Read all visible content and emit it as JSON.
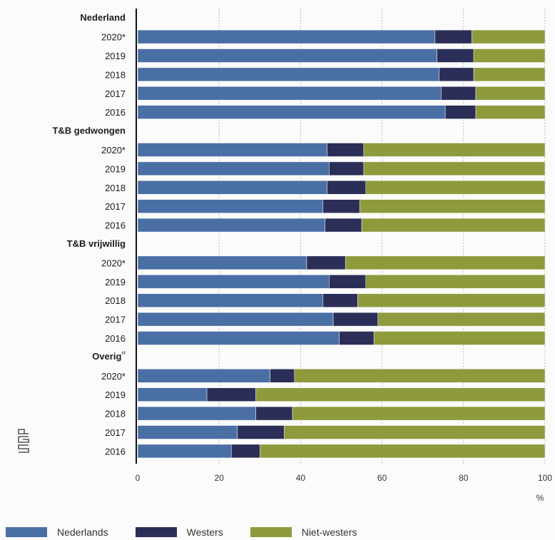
{
  "chart_data": {
    "type": "bar",
    "orientation": "horizontal",
    "stacked": true,
    "unit": "%",
    "xlim": [
      0,
      100
    ],
    "x_ticks": [
      "0",
      "20",
      "40",
      "60",
      "80",
      "100"
    ],
    "grid": true,
    "legend_position": "bottom",
    "series_names": [
      "Nederlands",
      "Westers",
      "Niet-westers"
    ],
    "colors": [
      "#4a6fa5",
      "#2b2f57",
      "#8e9a3c"
    ],
    "groups": [
      {
        "label": "Nederland",
        "rows": [
          {
            "year": "2020*",
            "values": [
              73,
              9,
              18
            ]
          },
          {
            "year": "2019",
            "values": [
              73.5,
              9,
              17.5
            ]
          },
          {
            "year": "2018",
            "values": [
              74,
              8.5,
              17.5
            ]
          },
          {
            "year": "2017",
            "values": [
              74.5,
              8.5,
              17
            ]
          },
          {
            "year": "2016",
            "values": [
              75.5,
              7.5,
              17
            ]
          }
        ]
      },
      {
        "label": "T&B gedwongen",
        "rows": [
          {
            "year": "2020*",
            "values": [
              46.5,
              9,
              44.5
            ]
          },
          {
            "year": "2019",
            "values": [
              47,
              8.5,
              44.5
            ]
          },
          {
            "year": "2018",
            "values": [
              46.5,
              9.5,
              44
            ]
          },
          {
            "year": "2017",
            "values": [
              45.5,
              9,
              45.5
            ]
          },
          {
            "year": "2016",
            "values": [
              46,
              9,
              45
            ]
          }
        ]
      },
      {
        "label": "T&B vrijwillig",
        "rows": [
          {
            "year": "2020*",
            "values": [
              41.5,
              9.5,
              49
            ]
          },
          {
            "year": "2019",
            "values": [
              47,
              9,
              44
            ]
          },
          {
            "year": "2018",
            "values": [
              45.5,
              8.5,
              46
            ]
          },
          {
            "year": "2017",
            "values": [
              48,
              11,
              41
            ]
          },
          {
            "year": "2016",
            "values": [
              49.5,
              8.5,
              42
            ]
          }
        ]
      },
      {
        "label": "Overig",
        "label_superscript": "¹⁾",
        "rows": [
          {
            "year": "2020*",
            "values": [
              32.5,
              6,
              61.5
            ]
          },
          {
            "year": "2019",
            "values": [
              17,
              12,
              71
            ]
          },
          {
            "year": "2018",
            "values": [
              29,
              9,
              62
            ]
          },
          {
            "year": "2017",
            "values": [
              24.5,
              11.5,
              64
            ]
          },
          {
            "year": "2016",
            "values": [
              23,
              7,
              70
            ]
          }
        ]
      }
    ]
  },
  "legend": [
    {
      "label": "Nederlands",
      "color": "#4a6fa5"
    },
    {
      "label": "Westers",
      "color": "#2b2f57"
    },
    {
      "label": "Niet-westers",
      "color": "#8e9a3c"
    }
  ],
  "logo_icon": "cbs-logo-icon"
}
